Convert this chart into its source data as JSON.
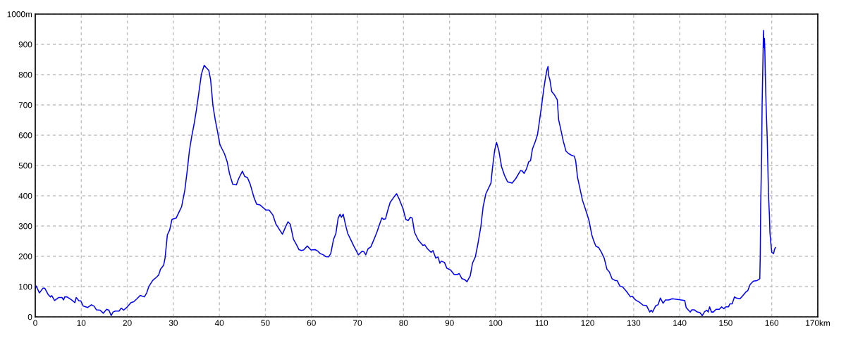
{
  "chart_data": {
    "type": "line",
    "color": "#0000ff",
    "line_style": "solid",
    "grid": true,
    "xlim": [
      0,
      170
    ],
    "ylim": [
      0,
      1000
    ],
    "xticks": [
      0,
      10,
      20,
      30,
      40,
      50,
      60,
      70,
      80,
      90,
      100,
      110,
      120,
      130,
      140,
      150,
      160,
      {
        "value": 170,
        "label": "170km"
      }
    ],
    "yticks": [
      0,
      100,
      200,
      300,
      400,
      500,
      600,
      700,
      800,
      900,
      {
        "value": 1000,
        "label": "1000m"
      }
    ],
    "x": [
      0,
      0.2,
      0.9,
      1.7,
      2.05,
      2.8,
      3.3,
      3.6,
      4.2,
      5.1,
      5.8,
      6.15,
      6.4,
      6.9,
      7.9,
      8.6,
      8.9,
      9.5,
      9.9,
      10.4,
      11.4,
      12.2,
      12.8,
      13.3,
      14.1,
      14.8,
      15.5,
      16.0,
      16.5,
      16.9,
      17.4,
      18.2,
      18.7,
      19.2,
      20.0,
      20.8,
      21.4,
      22.1,
      22.8,
      23.7,
      24.2,
      24.7,
      25.5,
      26.4,
      26.8,
      27.2,
      27.9,
      28.2,
      28.7,
      29.2,
      29.7,
      30.6,
      31.2,
      31.8,
      32.5,
      33.0,
      33.5,
      34.0,
      34.5,
      35.0,
      35.5,
      36.1,
      36.7,
      37.2,
      37.7,
      38.1,
      38.6,
      39.1,
      39.6,
      40.1,
      40.6,
      41.1,
      41.7,
      42.2,
      42.9,
      43.7,
      44.2,
      45.0,
      45.5,
      46.1,
      46.7,
      47.5,
      48.1,
      48.8,
      50.1,
      50.8,
      51.6,
      52.3,
      53.1,
      53.7,
      54.4,
      54.9,
      55.4,
      56.1,
      56.7,
      57.3,
      57.8,
      58.3,
      59.1,
      59.4,
      59.9,
      60.8,
      61.4,
      61.9,
      62.6,
      63.1,
      63.7,
      64.2,
      64.8,
      65.3,
      65.8,
      66.2,
      66.5,
      66.9,
      67.5,
      67.9,
      68.5,
      69.2,
      70.2,
      71.0,
      71.4,
      71.8,
      72.3,
      72.9,
      73.6,
      74.3,
      74.8,
      75.3,
      75.7,
      76.1,
      76.6,
      77.1,
      77.7,
      78.5,
      79.1,
      79.9,
      80.5,
      81.0,
      81.5,
      81.9,
      82.4,
      83.2,
      84.2,
      84.6,
      85.2,
      86.0,
      86.4,
      87.0,
      87.5,
      87.9,
      88.2,
      88.9,
      89.4,
      90.2,
      91.0,
      91.7,
      92.1,
      92.7,
      93.2,
      93.8,
      94.5,
      95.0,
      95.6,
      96.1,
      96.8,
      97.3,
      97.9,
      98.5,
      99.0,
      99.3,
      99.8,
      100.2,
      100.7,
      101.3,
      101.9,
      102.6,
      103.6,
      104.4,
      105.4,
      105.8,
      106.2,
      106.7,
      107.2,
      107.6,
      108.0,
      108.6,
      109.1,
      109.5,
      110.0,
      110.5,
      110.9,
      111.2,
      111.4,
      111.5,
      111.8,
      112.2,
      112.8,
      113.4,
      113.7,
      114.1,
      114.7,
      115.3,
      115.9,
      116.6,
      117.1,
      117.4,
      117.8,
      118.4,
      118.9,
      119.5,
      120.3,
      120.9,
      121.3,
      121.8,
      122.4,
      123.0,
      123.6,
      124.2,
      124.7,
      125.3,
      126.0,
      126.4,
      127.0,
      127.6,
      128.4,
      129.3,
      129.7,
      130.4,
      131.3,
      132.0,
      132.8,
      133.5,
      133.8,
      134.1,
      134.8,
      135.3,
      135.8,
      136.4,
      136.9,
      137.6,
      138.4,
      139.8,
      141.1,
      141.4,
      141.9,
      142.3,
      142.6,
      143.2,
      143.7,
      144.4,
      144.9,
      145.4,
      145.9,
      146.2,
      146.5,
      146.9,
      147.3,
      147.9,
      148.6,
      149.1,
      149.6,
      150.0,
      150.6,
      150.9,
      151.4,
      151.9,
      152.3,
      153.1,
      153.7,
      154.3,
      154.8,
      155.3,
      156.0,
      156.8,
      157.4,
      157.5,
      157.6,
      157.8,
      157.9,
      158.1,
      158.2,
      158.3,
      158.4,
      158.5,
      158.6,
      158.8,
      159.0,
      159.1,
      159.2,
      159.3,
      159.5,
      159.6,
      159.8,
      160.0,
      160.4,
      160.6,
      160.8
    ],
    "values": [
      95,
      102,
      79,
      95,
      95,
      74,
      66,
      70,
      54,
      64,
      64,
      56,
      66,
      66,
      56,
      47,
      64,
      53,
      53,
      36,
      31,
      40,
      35,
      23,
      22,
      12,
      25,
      22,
      4,
      16,
      19,
      19,
      29,
      22,
      33,
      47,
      50,
      60,
      71,
      66,
      79,
      101,
      120,
      132,
      138,
      157,
      171,
      194,
      271,
      287,
      322,
      326,
      345,
      364,
      419,
      481,
      550,
      597,
      636,
      682,
      736,
      802,
      831,
      822,
      814,
      783,
      698,
      651,
      612,
      570,
      554,
      539,
      512,
      473,
      438,
      436,
      457,
      481,
      464,
      460,
      438,
      395,
      372,
      370,
      353,
      353,
      337,
      306,
      287,
      273,
      298,
      314,
      306,
      256,
      240,
      222,
      219,
      221,
      234,
      229,
      221,
      222,
      217,
      209,
      205,
      199,
      198,
      209,
      256,
      275,
      326,
      339,
      329,
      339,
      298,
      275,
      256,
      234,
      205,
      217,
      215,
      205,
      225,
      231,
      256,
      283,
      306,
      327,
      322,
      324,
      353,
      378,
      391,
      407,
      388,
      357,
      322,
      318,
      329,
      326,
      279,
      254,
      236,
      238,
      225,
      213,
      219,
      194,
      198,
      177,
      184,
      180,
      161,
      155,
      140,
      140,
      143,
      126,
      124,
      116,
      136,
      178,
      198,
      236,
      298,
      364,
      407,
      426,
      442,
      488,
      550,
      576,
      550,
      496,
      469,
      446,
      442,
      457,
      483,
      482,
      474,
      488,
      512,
      516,
      554,
      578,
      601,
      643,
      698,
      756,
      795,
      818,
      827,
      798,
      783,
      744,
      733,
      717,
      651,
      624,
      581,
      547,
      539,
      533,
      531,
      516,
      461,
      419,
      384,
      357,
      318,
      271,
      252,
      233,
      229,
      213,
      194,
      157,
      149,
      126,
      120,
      120,
      102,
      99,
      85,
      66,
      68,
      56,
      48,
      39,
      37,
      16,
      22,
      16,
      37,
      40,
      62,
      45,
      56,
      56,
      60,
      57,
      54,
      31,
      22,
      16,
      23,
      23,
      17,
      14,
      4,
      17,
      22,
      16,
      33,
      16,
      16,
      25,
      25,
      33,
      27,
      33,
      33,
      43,
      43,
      66,
      62,
      60,
      70,
      81,
      87,
      107,
      118,
      120,
      126,
      205,
      372,
      535,
      698,
      860,
      946,
      890,
      920,
      880,
      798,
      682,
      597,
      531,
      465,
      399,
      333,
      279,
      244,
      213,
      209,
      223,
      229
    ]
  }
}
